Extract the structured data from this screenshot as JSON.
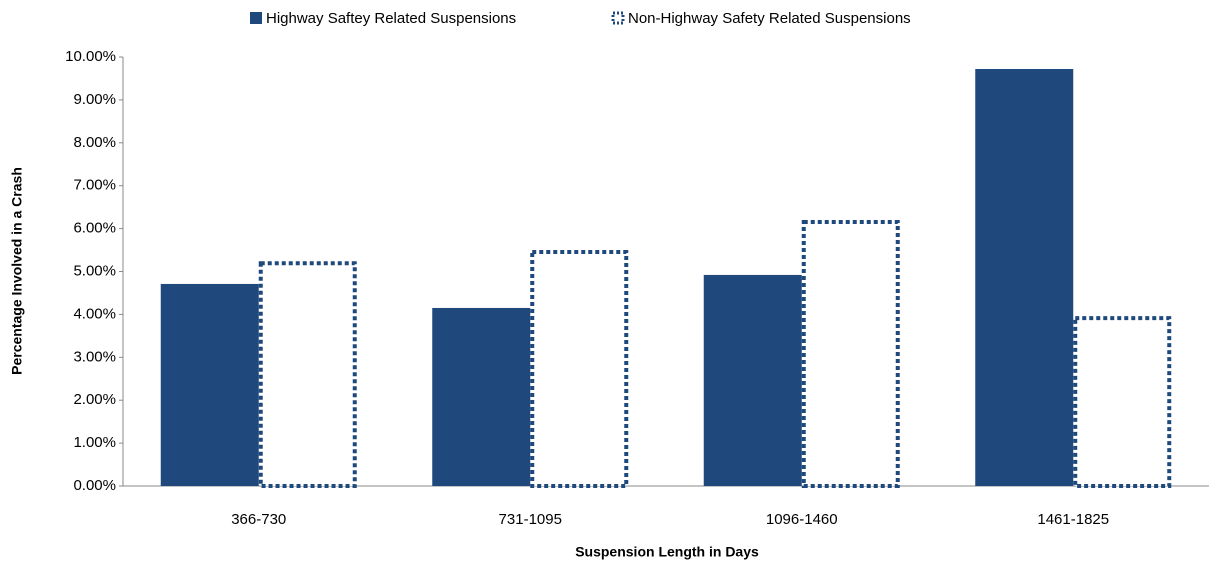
{
  "chart_data": {
    "type": "bar",
    "legend": "top",
    "x_label": "Suspension Length in Days",
    "y_label": "Percentage Involved in a Crash",
    "categories": [
      "366-730",
      "731-1095",
      "1096-1460",
      "1461-1825"
    ],
    "series": [
      {
        "name": "Highway Saftey Related Suspensions",
        "color": "#1f497d",
        "style": "solid",
        "values": [
          4.71,
          4.15,
          4.92,
          9.72
        ]
      },
      {
        "name": "Non-Highway Safety Related Suspensions",
        "color": "#1f497d",
        "style": "dotted",
        "values": [
          5.24,
          5.5,
          6.2,
          3.96
        ]
      }
    ],
    "ylim": [
      0,
      10
    ],
    "yticks": [
      {
        "value": 0,
        "label": "0.00%"
      },
      {
        "value": 1,
        "label": "1.00%"
      },
      {
        "value": 2,
        "label": "2.00%"
      },
      {
        "value": 3,
        "label": "3.00%"
      },
      {
        "value": 4,
        "label": "4.00%"
      },
      {
        "value": 5,
        "label": "5.00%"
      },
      {
        "value": 6,
        "label": "6.00%"
      },
      {
        "value": 7,
        "label": "7.00%"
      },
      {
        "value": 8,
        "label": "8.00%"
      },
      {
        "value": 9,
        "label": "9.00%"
      },
      {
        "value": 10,
        "label": "10.00%"
      }
    ],
    "grid": false
  }
}
